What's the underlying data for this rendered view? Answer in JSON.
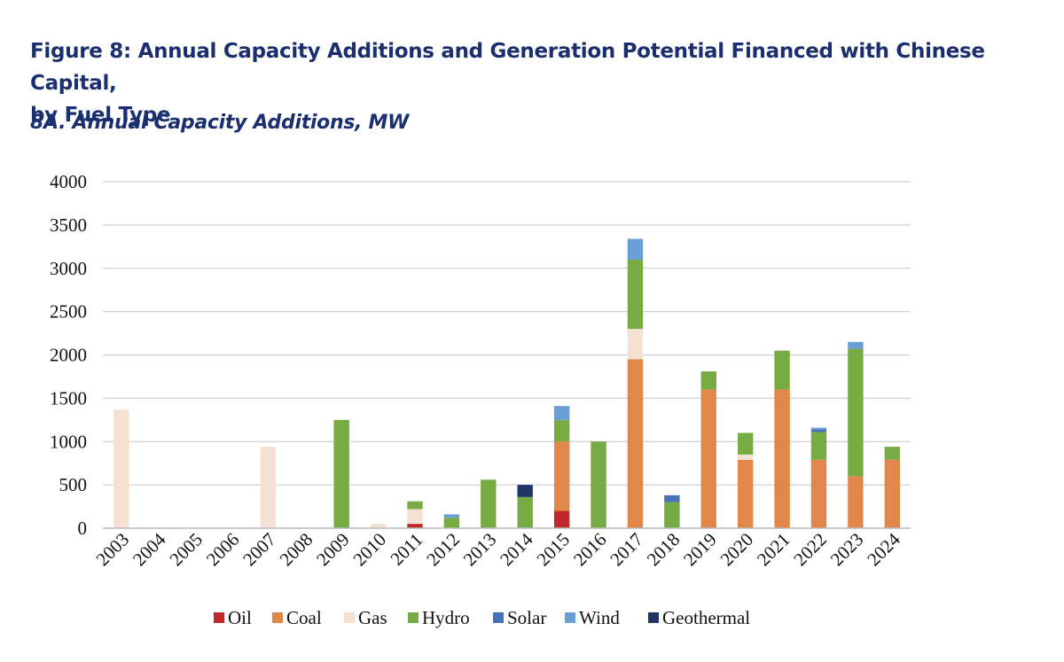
{
  "figure": {
    "title_line1": "Figure 8: Annual Capacity Additions and Generation Potential Financed with Chinese Capital,",
    "title_line2": "by Fuel Type",
    "subtitle": "8A. Annual Capacity Additions, MW"
  },
  "chart_data": {
    "type": "bar",
    "stacked": true,
    "title": "8A. Annual Capacity Additions, MW",
    "xlabel": "",
    "ylabel": "",
    "ylim": [
      0,
      4000
    ],
    "yticks": [
      0,
      500,
      1000,
      1500,
      2000,
      2500,
      3000,
      3500,
      4000
    ],
    "grid": true,
    "legend_position": "bottom",
    "categories": [
      "2003",
      "2004",
      "2005",
      "2006",
      "2007",
      "2008",
      "2009",
      "2010",
      "2011",
      "2012",
      "2013",
      "2014",
      "2015",
      "2016",
      "2017",
      "2018",
      "2019",
      "2020",
      "2021",
      "2022",
      "2023",
      "2024"
    ],
    "series": [
      {
        "name": "Oil",
        "color": "#c0282c",
        "values": [
          0,
          0,
          0,
          0,
          0,
          0,
          0,
          0,
          50,
          0,
          0,
          0,
          200,
          0,
          0,
          0,
          0,
          0,
          0,
          0,
          0,
          0
        ]
      },
      {
        "name": "Coal",
        "color": "#e2874a",
        "values": [
          0,
          0,
          0,
          0,
          0,
          0,
          0,
          0,
          0,
          0,
          0,
          0,
          800,
          0,
          1950,
          0,
          1600,
          790,
          1600,
          790,
          600,
          790
        ]
      },
      {
        "name": "Gas",
        "color": "#f5e1d3",
        "values": [
          1370,
          0,
          0,
          0,
          940,
          0,
          0,
          50,
          170,
          0,
          0,
          0,
          0,
          0,
          350,
          0,
          0,
          60,
          0,
          0,
          0,
          0
        ]
      },
      {
        "name": "Hydro",
        "color": "#77ab43",
        "values": [
          0,
          0,
          0,
          0,
          0,
          0,
          1250,
          0,
          90,
          120,
          560,
          360,
          250,
          1000,
          800,
          300,
          210,
          250,
          450,
          320,
          1470,
          150
        ]
      },
      {
        "name": "Solar",
        "color": "#4a72b8",
        "values": [
          0,
          0,
          0,
          0,
          0,
          0,
          0,
          0,
          0,
          0,
          0,
          0,
          0,
          0,
          0,
          80,
          0,
          0,
          0,
          30,
          0,
          0
        ]
      },
      {
        "name": "Wind",
        "color": "#6a9ed6",
        "values": [
          0,
          0,
          0,
          0,
          0,
          0,
          0,
          0,
          0,
          40,
          0,
          0,
          160,
          0,
          240,
          0,
          0,
          0,
          0,
          20,
          80,
          0
        ]
      },
      {
        "name": "Geothermal",
        "color": "#1f3563",
        "values": [
          0,
          0,
          0,
          0,
          0,
          0,
          0,
          0,
          0,
          0,
          0,
          140,
          0,
          0,
          0,
          0,
          0,
          0,
          0,
          0,
          0,
          0
        ]
      }
    ]
  }
}
